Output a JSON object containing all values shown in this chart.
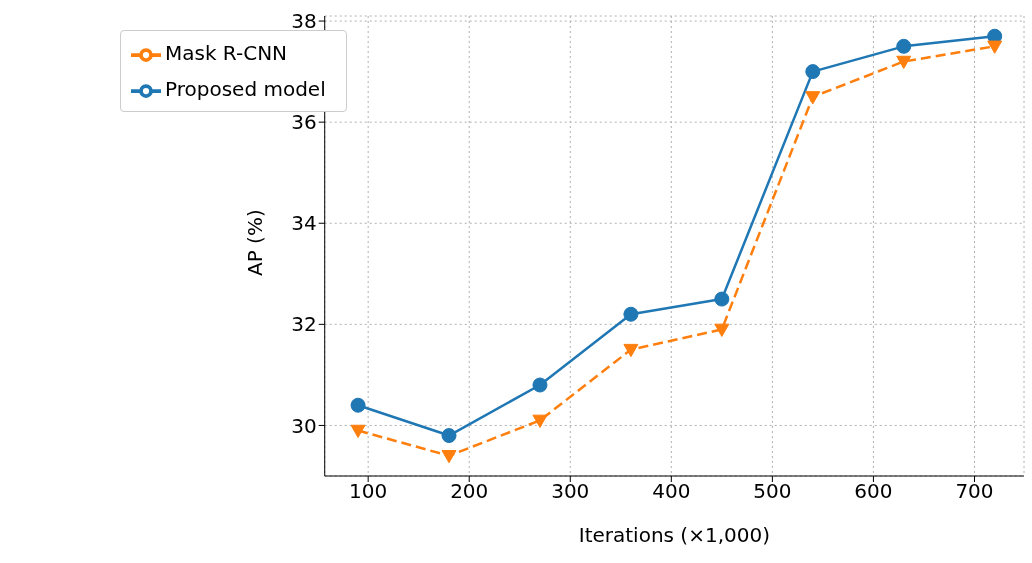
{
  "chart_data": {
    "type": "line",
    "xlabel": "Iterations (×1,000)",
    "ylabel": "AP (%)",
    "x": [
      90,
      180,
      270,
      360,
      450,
      540,
      630,
      720
    ],
    "series": [
      {
        "name": "Proposed model",
        "color": "#1f77b4",
        "marker": "circle",
        "line_style": "solid",
        "values": [
          30.4,
          29.8,
          30.8,
          32.2,
          32.5,
          37.0,
          37.5,
          37.7
        ]
      },
      {
        "name": "Mask R-CNN",
        "color": "#ff7f0e",
        "marker": "triangle",
        "line_style": "dashed",
        "values": [
          29.9,
          29.4,
          30.1,
          31.5,
          31.9,
          36.5,
          37.2,
          37.5
        ]
      }
    ],
    "xlim": [
      57,
      749
    ],
    "xticks": [
      100,
      200,
      300,
      400,
      500,
      600,
      700
    ],
    "ylim": [
      29,
      38.1
    ],
    "yticks": [
      30,
      32,
      34,
      36,
      38
    ],
    "grid": true,
    "legend": "top left"
  }
}
